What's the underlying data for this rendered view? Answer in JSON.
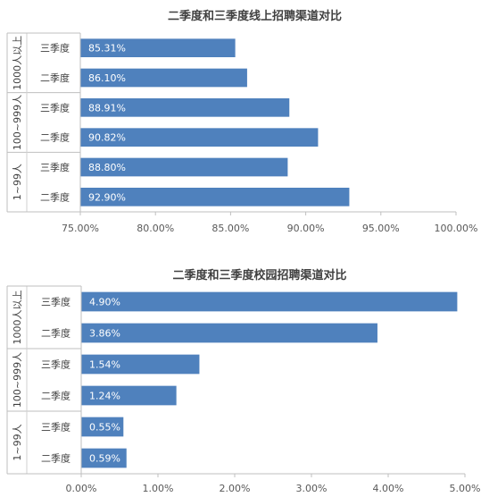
{
  "chart_data": [
    {
      "type": "bar",
      "orientation": "horizontal",
      "title": "二季度和三季度线上招聘渠道对比",
      "groups": [
        {
          "name": "1000人以上",
          "rows": [
            {
              "label": "三季度",
              "value": 85.31,
              "text": "85.31%"
            },
            {
              "label": "二季度",
              "value": 86.1,
              "text": "86.10%"
            }
          ]
        },
        {
          "name": "100~999人",
          "rows": [
            {
              "label": "三季度",
              "value": 88.91,
              "text": "88.91%"
            },
            {
              "label": "二季度",
              "value": 90.82,
              "text": "90.82%"
            }
          ]
        },
        {
          "name": "1~99人",
          "rows": [
            {
              "label": "三季度",
              "value": 88.8,
              "text": "88.80%"
            },
            {
              "label": "二季度",
              "value": 92.9,
              "text": "92.90%"
            }
          ]
        }
      ],
      "xlim": [
        75,
        100
      ],
      "ticks": [
        "75.00%",
        "80.00%",
        "85.00%",
        "90.00%",
        "95.00%",
        "100.00%"
      ],
      "bar_color": "#4f81bd",
      "grid": false
    },
    {
      "type": "bar",
      "orientation": "horizontal",
      "title": "二季度和三季度校园招聘渠道对比",
      "groups": [
        {
          "name": "1000人以上",
          "rows": [
            {
              "label": "三季度",
              "value": 4.9,
              "text": "4.90%"
            },
            {
              "label": "二季度",
              "value": 3.86,
              "text": "3.86%"
            }
          ]
        },
        {
          "name": "100~999人",
          "rows": [
            {
              "label": "三季度",
              "value": 1.54,
              "text": "1.54%"
            },
            {
              "label": "二季度",
              "value": 1.24,
              "text": "1.24%"
            }
          ]
        },
        {
          "name": "1~99人",
          "rows": [
            {
              "label": "三季度",
              "value": 0.55,
              "text": "0.55%"
            },
            {
              "label": "二季度",
              "value": 0.59,
              "text": "0.59%"
            }
          ]
        }
      ],
      "xlim": [
        0,
        5
      ],
      "ticks": [
        "0.00%",
        "1.00%",
        "2.00%",
        "3.00%",
        "4.00%",
        "5.00%"
      ],
      "bar_color": "#4f81bd",
      "grid": false
    }
  ]
}
